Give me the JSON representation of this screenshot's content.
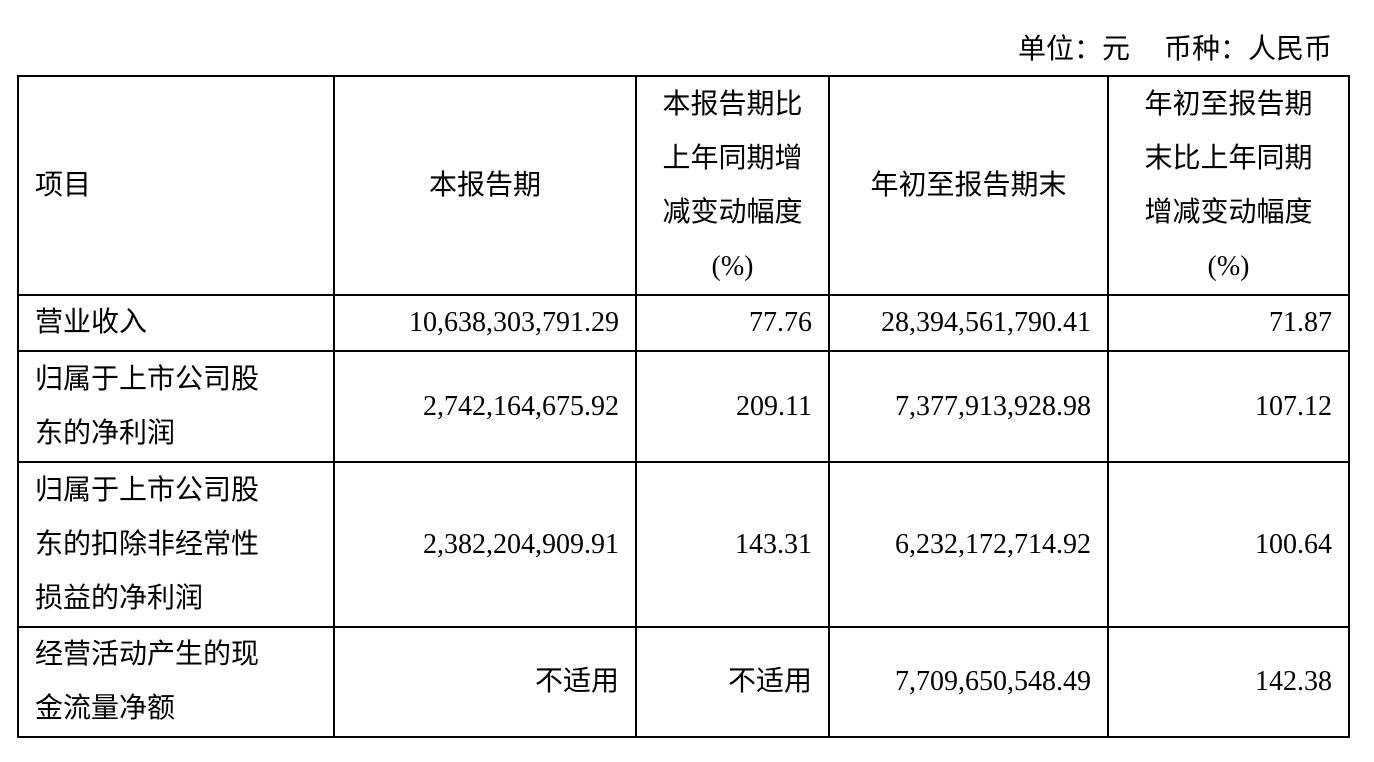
{
  "unit_line": {
    "unit": "单位：元",
    "currency": "币种：人民币"
  },
  "table": {
    "columns": [
      [
        "项目"
      ],
      [
        "本报告期"
      ],
      [
        "本报告期比",
        "上年同期增",
        "减变动幅度",
        "(%)"
      ],
      [
        "年初至报告期末"
      ],
      [
        "年初至报告期",
        "末比上年同期",
        "增减变动幅度",
        "(%)"
      ]
    ],
    "rows": [
      [
        [
          "营业收入"
        ],
        "10,638,303,791.29",
        "77.76",
        "28,394,561,790.41",
        "71.87"
      ],
      [
        [
          "归属于上市公司股",
          "东的净利润"
        ],
        "2,742,164,675.92",
        "209.11",
        "7,377,913,928.98",
        "107.12"
      ],
      [
        [
          "归属于上市公司股",
          "东的扣除非经常性",
          "损益的净利润"
        ],
        "2,382,204,909.91",
        "143.31",
        "6,232,172,714.92",
        "100.64"
      ],
      [
        [
          "经营活动产生的现",
          "金流量净额"
        ],
        "不适用",
        "不适用",
        "7,709,650,548.49",
        "142.38"
      ]
    ]
  }
}
